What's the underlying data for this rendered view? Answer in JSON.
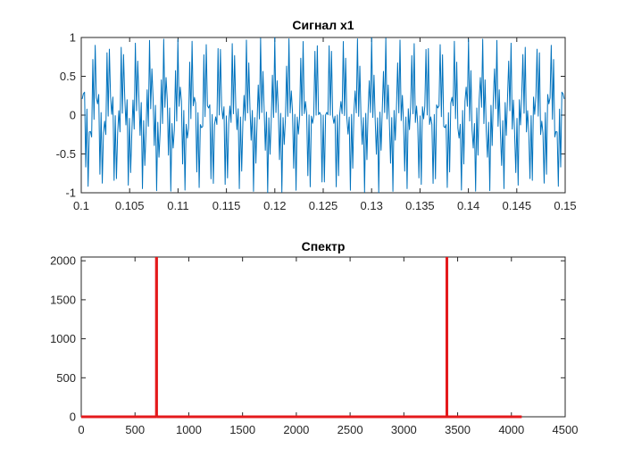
{
  "chart_data": [
    {
      "type": "line",
      "title": "Сигнал x1",
      "xlabel": "",
      "ylabel": "",
      "xlim": [
        0.1,
        0.15
      ],
      "ylim": [
        -1,
        1
      ],
      "x_ticks": [
        "0.1",
        "0.105",
        "0.11",
        "0.115",
        "0.12",
        "0.125",
        "0.13",
        "0.135",
        "0.14",
        "0.145",
        "0.15"
      ],
      "y_ticks": [
        "-1",
        "-0.5",
        "0",
        "0.5",
        "1"
      ],
      "sample_rate": 8192,
      "series": [
        {
          "color": "#0072bd",
          "components": [
            {
              "frequency": 700,
              "amplitude": 0.5
            },
            {
              "frequency": 3400,
              "amplitude": 0.5
            }
          ]
        }
      ]
    },
    {
      "type": "line",
      "title": "Спектр",
      "xlabel": "",
      "ylabel": "",
      "xlim": [
        0,
        4500
      ],
      "ylim": [
        0,
        2048
      ],
      "x_ticks": [
        "0",
        "500",
        "1000",
        "1500",
        "2000",
        "2500",
        "3000",
        "3500",
        "4000",
        "4500"
      ],
      "y_ticks": [
        "0",
        "500",
        "1000",
        "1500",
        "2000"
      ],
      "series": [
        {
          "color": "#e41a1c",
          "points": [
            {
              "x": 0,
              "y": 0
            },
            {
              "x": 700,
              "y": 0
            },
            {
              "x": 700,
              "y": 2048
            },
            {
              "x": 700,
              "y": 0
            },
            {
              "x": 3400,
              "y": 0
            },
            {
              "x": 3400,
              "y": 2048
            },
            {
              "x": 3400,
              "y": 0
            },
            {
              "x": 4096,
              "y": 0
            }
          ]
        }
      ]
    }
  ]
}
